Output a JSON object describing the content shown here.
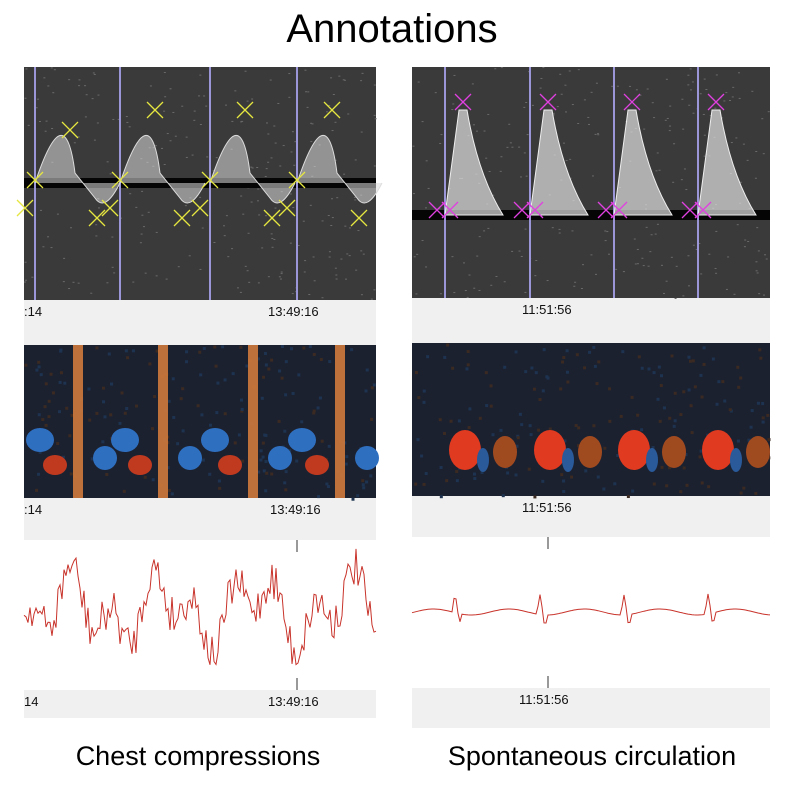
{
  "title": "Annotations",
  "columns": [
    {
      "caption": "Chest compressions",
      "panels": [
        {
          "time_labels": [
            ":14",
            "13:49:16"
          ]
        },
        {
          "time_labels": [
            ":14",
            "13:49:16"
          ]
        },
        {
          "time_labels": [
            "14",
            "13:49:16"
          ]
        }
      ]
    },
    {
      "caption": "Spontaneous circulation",
      "panels": [
        {
          "time_labels": [
            "11:51:56"
          ]
        },
        {
          "time_labels": [
            "11:51:56"
          ]
        },
        {
          "time_labels": [
            "11:51:56"
          ]
        }
      ]
    }
  ]
}
